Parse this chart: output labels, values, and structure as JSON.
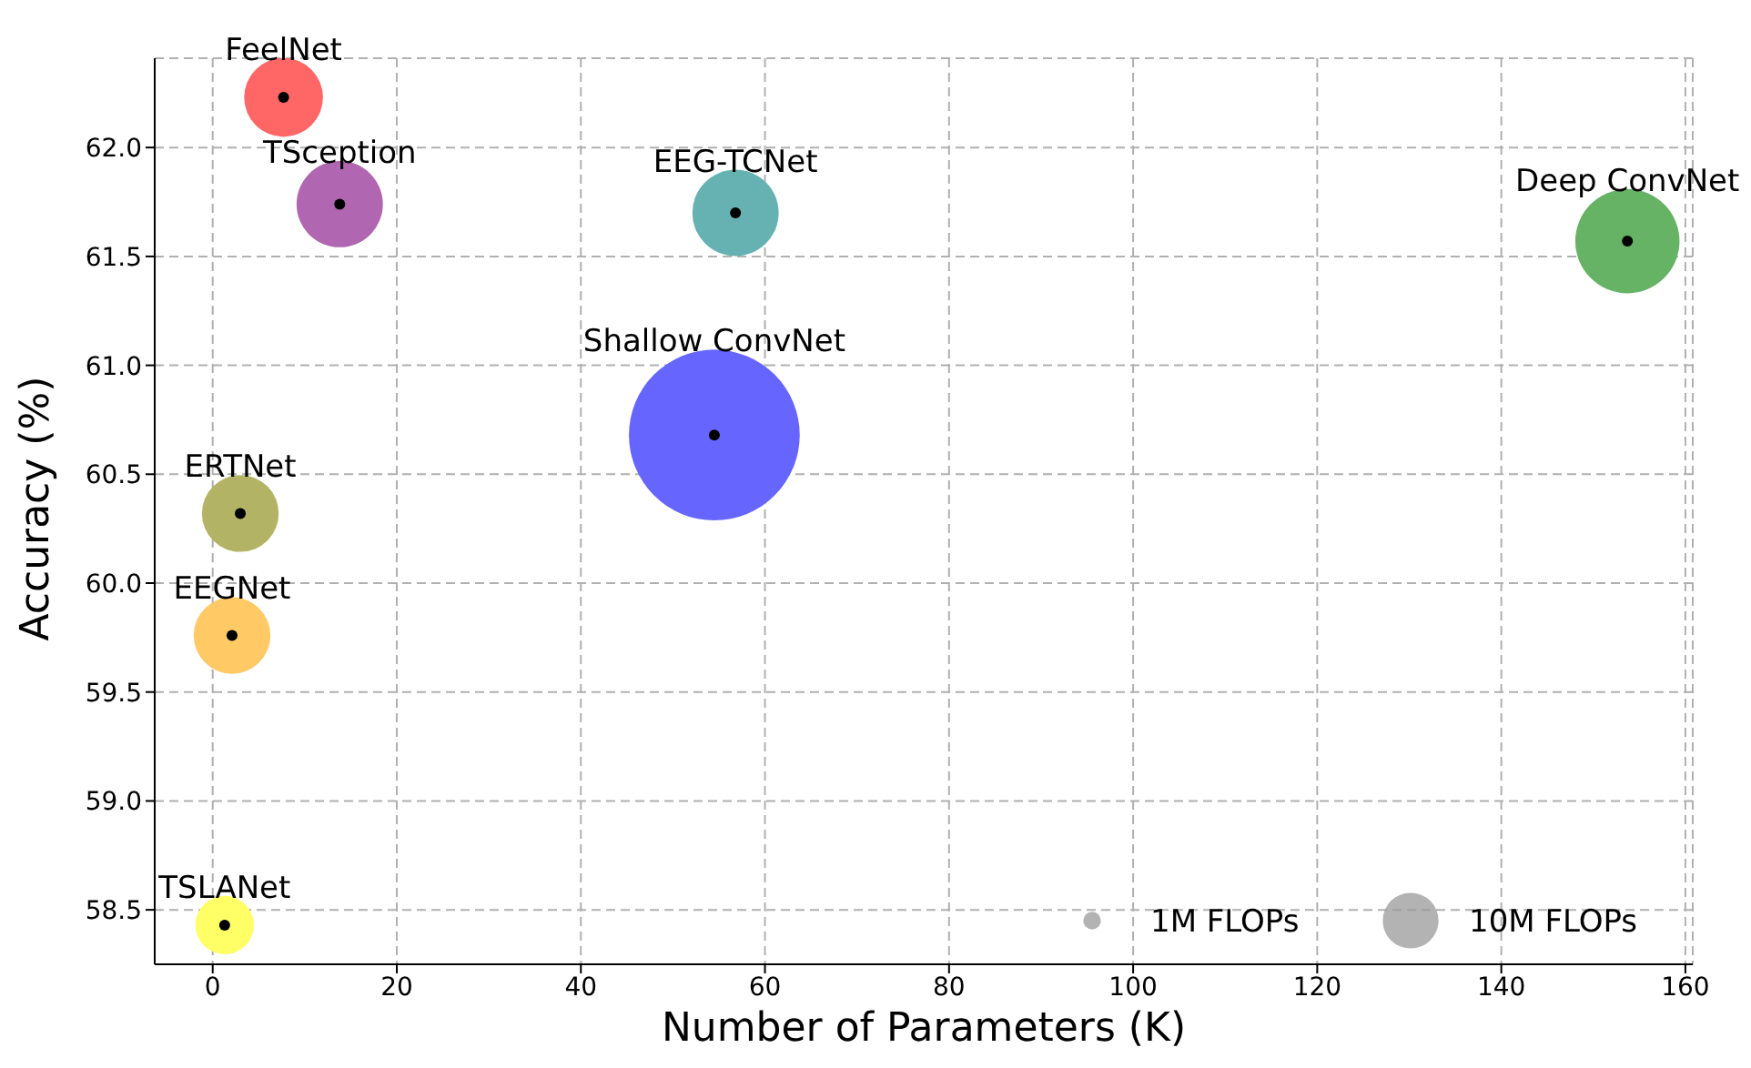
{
  "chart_data": {
    "type": "bubble",
    "xlabel": "Number of Parameters (K)",
    "ylabel": "Accuracy (%)",
    "xlim": [
      -6.3,
      160.8
    ],
    "xticks": [
      0,
      20,
      40,
      60,
      80,
      100,
      120,
      140,
      160
    ],
    "ylim": [
      58.25,
      62.41
    ],
    "yticks": [
      {
        "value": 58.5,
        "label": "58.5"
      },
      {
        "value": 59,
        "label": "59.0"
      },
      {
        "value": 59.5,
        "label": "59.5"
      },
      {
        "value": 60,
        "label": "60.0"
      },
      {
        "value": 60.5,
        "label": "60.5"
      },
      {
        "value": 61,
        "label": "61.0"
      },
      {
        "value": 61.5,
        "label": "61.5"
      },
      {
        "value": 62,
        "label": "62.0"
      }
    ],
    "grid": true,
    "size_legend": [
      {
        "value": 1,
        "label": "1M FLOPs"
      },
      {
        "value": 10,
        "label": "10M FLOPs"
      }
    ],
    "series": [
      {
        "name": "FeelNet",
        "color": "#ff6666",
        "x": [
          7.7
        ],
        "values": [
          62.23
        ],
        "sizes": [
          20
        ]
      },
      {
        "name": "TSception",
        "color": "#b066b0",
        "x": [
          13.8
        ],
        "values": [
          61.74
        ],
        "sizes": [
          24
        ]
      },
      {
        "name": "EEG-TCNet",
        "color": "#66b2b2",
        "x": [
          56.8
        ],
        "values": [
          61.7
        ],
        "sizes": [
          24
        ]
      },
      {
        "name": "Deep ConvNet",
        "color": "#66b366",
        "x": [
          153.7
        ],
        "values": [
          61.57
        ],
        "sizes": [
          35
        ]
      },
      {
        "name": "Shallow ConvNet",
        "color": "#6666ff",
        "x": [
          54.5
        ],
        "values": [
          60.68
        ],
        "sizes": [
          94
        ]
      },
      {
        "name": "ERTNet",
        "color": "#b3b366",
        "x": [
          3.0
        ],
        "values": [
          60.32
        ],
        "sizes": [
          19
        ]
      },
      {
        "name": "EEGNet",
        "color": "#ffc966",
        "x": [
          2.1
        ],
        "values": [
          59.76
        ],
        "sizes": [
          19
        ]
      },
      {
        "name": "TSLANet",
        "color": "#ffff66",
        "x": [
          1.3
        ],
        "values": [
          58.43
        ],
        "sizes": [
          11
        ]
      }
    ]
  }
}
